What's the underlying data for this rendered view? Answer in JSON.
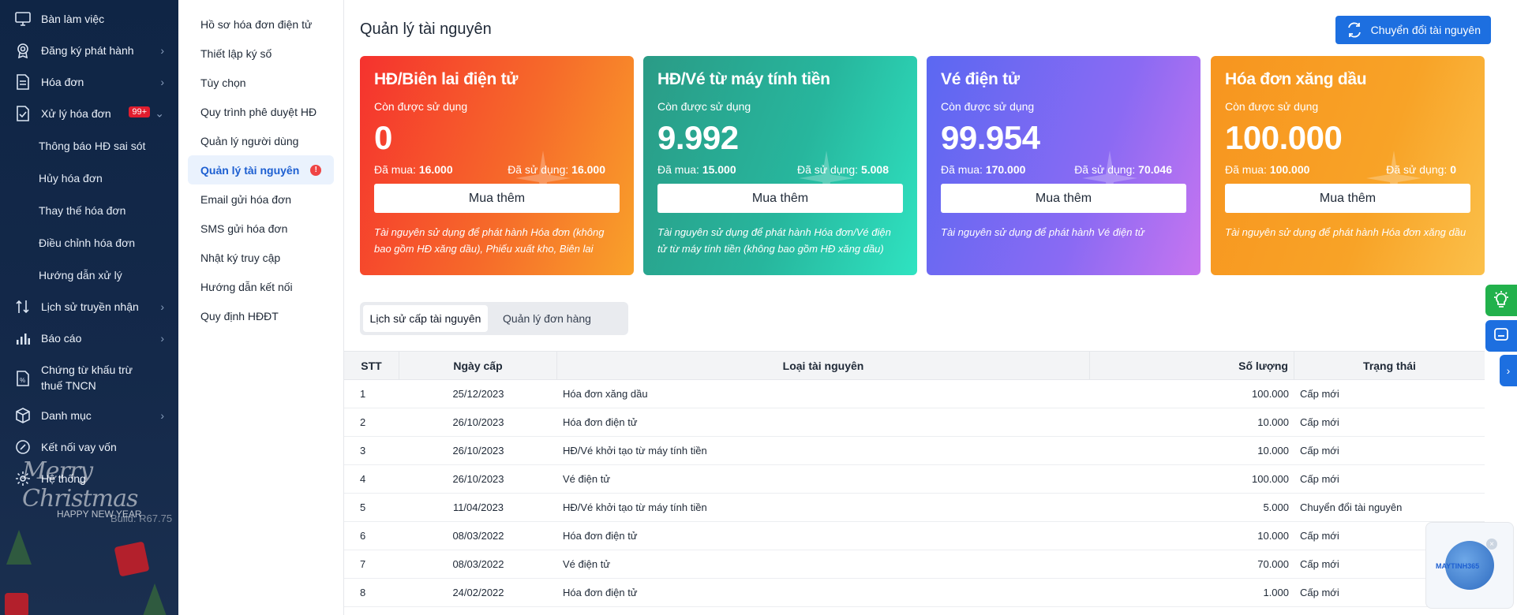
{
  "sidebar": {
    "items": [
      {
        "label": "Bàn làm việc",
        "icon": "monitor-icon"
      },
      {
        "label": "Đăng ký phát hành",
        "icon": "badge-icon"
      },
      {
        "label": "Hóa đơn",
        "icon": "document-icon"
      },
      {
        "label": "Xử lý hóa đơn",
        "icon": "check-document-icon",
        "badge": "99+"
      },
      {
        "label": "Lịch sử truyền nhận",
        "icon": "transfer-icon"
      },
      {
        "label": "Báo cáo",
        "icon": "chart-icon"
      },
      {
        "label": "Chứng từ khấu trừ thuế TNCN",
        "icon": "tax-document-icon"
      },
      {
        "label": "Danh mục",
        "icon": "cube-icon"
      },
      {
        "label": "Kết nối vay vốn",
        "icon": "link-icon"
      },
      {
        "label": "Hệ thống",
        "icon": "gear-icon"
      }
    ],
    "subitems": [
      "Thông báo HĐ sai sót",
      "Hủy hóa đơn",
      "Thay thế hóa đơn",
      "Điều chỉnh hóa đơn",
      "Hướng dẫn xử lý"
    ],
    "xmas_title": "Merry Christmas",
    "xmas_sub": "HAPPY NEW YEAR",
    "build": "Build: R67.75"
  },
  "subnav": {
    "items": [
      "Hồ sơ hóa đơn điện tử",
      "Thiết lập ký số",
      "Tùy chọn",
      "Quy trình phê duyệt HĐ",
      "Quản lý người dùng",
      "Quản lý tài nguyên",
      "Email gửi hóa đơn",
      "SMS gửi hóa đơn",
      "Nhật ký truy cập",
      "Hướng dẫn kết nối",
      "Quy định HĐĐT"
    ],
    "active_dot": "!"
  },
  "main": {
    "title": "Quản lý tài nguyên",
    "switch_button": "Chuyển đổi tài nguyên",
    "cards": [
      {
        "title": "HĐ/Biên lai điện tử",
        "remaining_label": "Còn được sử dụng",
        "remaining": "0",
        "bought_label": "Đã mua:",
        "bought": "16.000",
        "used_label": "Đã sử dụng:",
        "used": "16.000",
        "buy": "Mua thêm",
        "desc": "Tài nguyên sử dụng để phát hành Hóa đơn (không bao gồm HĐ xăng dầu), Phiếu xuất kho, Biên lai"
      },
      {
        "title": "HĐ/Vé từ máy tính tiền",
        "remaining_label": "Còn được sử dụng",
        "remaining": "9.992",
        "bought_label": "Đã mua:",
        "bought": "15.000",
        "used_label": "Đã sử dụng:",
        "used": "5.008",
        "buy": "Mua thêm",
        "desc": "Tài nguyên sử dụng để phát hành Hóa đơn/Vé điện tử từ máy tính tiền (không bao gồm HĐ xăng dầu)"
      },
      {
        "title": "Vé điện tử",
        "remaining_label": "Còn được sử dụng",
        "remaining": "99.954",
        "bought_label": "Đã mua:",
        "bought": "170.000",
        "used_label": "Đã sử dụng:",
        "used": "70.046",
        "buy": "Mua thêm",
        "desc": "Tài nguyên sử dụng để phát hành Vé điện tử"
      },
      {
        "title": "Hóa đơn xăng dầu",
        "remaining_label": "Còn được sử dụng",
        "remaining": "100.000",
        "bought_label": "Đã mua:",
        "bought": "100.000",
        "used_label": "Đã sử dụng:",
        "used": "0",
        "buy": "Mua thêm",
        "desc": "Tài nguyên sử dụng để phát hành Hóa đơn xăng dầu"
      }
    ],
    "tabs": [
      "Lịch sử cấp tài nguyên",
      "Quản lý đơn hàng"
    ],
    "table": {
      "headers": [
        "STT",
        "Ngày cấp",
        "Loại tài nguyên",
        "Số lượng",
        "Trạng thái"
      ],
      "rows": [
        [
          "1",
          "25/12/2023",
          "Hóa đơn xăng dầu",
          "100.000",
          "Cấp mới"
        ],
        [
          "2",
          "26/10/2023",
          "Hóa đơn điện tử",
          "10.000",
          "Cấp mới"
        ],
        [
          "3",
          "26/10/2023",
          "HĐ/Vé khởi tạo từ máy tính tiền",
          "10.000",
          "Cấp mới"
        ],
        [
          "4",
          "26/10/2023",
          "Vé điện tử",
          "100.000",
          "Cấp mới"
        ],
        [
          "5",
          "11/04/2023",
          "HĐ/Vé khởi tạo từ máy tính tiền",
          "5.000",
          "Chuyển đổi tài nguyên"
        ],
        [
          "6",
          "08/03/2022",
          "Hóa đơn điện tử",
          "10.000",
          "Cấp mới"
        ],
        [
          "7",
          "08/03/2022",
          "Vé điện tử",
          "70.000",
          "Cấp mới"
        ],
        [
          "8",
          "24/02/2022",
          "Hóa đơn điện tử",
          "1.000",
          "Cấp mới"
        ]
      ]
    }
  },
  "widget": {
    "brand": "MAYTINH365",
    "close": "×"
  },
  "colors": {
    "accent": "#1d6fe0",
    "sidebar_bg": "#0f2545",
    "active_bg": "#eaf2fd"
  }
}
